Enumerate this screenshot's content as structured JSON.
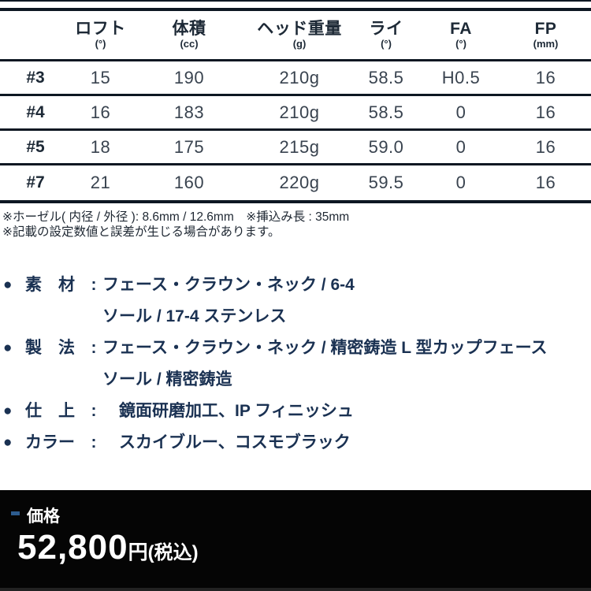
{
  "accent_colors": {
    "table_line": "#0d1722",
    "spec_text_navy": "#1a3152",
    "price_background": "#050505",
    "price_dash_blue": "#2d5c8f"
  },
  "table": {
    "headers": [
      {
        "label": "ロフト",
        "unit": "(°)"
      },
      {
        "label": "体積",
        "unit": "(cc)"
      },
      {
        "label": "ヘッド重量",
        "unit": "(g)"
      },
      {
        "label": "ライ",
        "unit": "(°)"
      },
      {
        "label": "FA",
        "unit": "(°)"
      },
      {
        "label": "FP",
        "unit": "(mm)"
      }
    ],
    "rows": [
      {
        "club": "#3",
        "values": [
          "15",
          "190",
          "210g",
          "58.5",
          "H0.5",
          "16"
        ]
      },
      {
        "club": "#4",
        "values": [
          "16",
          "183",
          "210g",
          "58.5",
          "0",
          "16"
        ]
      },
      {
        "club": "#5",
        "values": [
          "18",
          "175",
          "215g",
          "59.0",
          "0",
          "16"
        ]
      },
      {
        "club": "#7",
        "values": [
          "21",
          "160",
          "220g",
          "59.5",
          "0",
          "16"
        ]
      }
    ]
  },
  "notes": {
    "line1": "※ホーゼル( 内径 / 外径 ): 8.6mm / 12.6mm　※挿込み長 : 35mm",
    "line2": "※記載の設定数値と誤差が生じる場合があります。"
  },
  "specs": {
    "bullet": "●",
    "colon": ":",
    "items": [
      {
        "label": "素　材",
        "line1": "フェース・クラウン・ネック / 6-4",
        "line2": "ソール / 17-4 ステンレス"
      },
      {
        "label": "製　法",
        "line1": "フェース・クラウン・ネック / 精密鋳造 L 型カップフェース",
        "line2": "ソール / 精密鋳造"
      },
      {
        "label": "仕　上",
        "line1": "　鏡面研磨加工、IP フィニッシュ"
      },
      {
        "label": "カラー",
        "line1": "　スカイブルー、コスモブラック"
      }
    ]
  },
  "price": {
    "label": "価格",
    "amount": "52,800",
    "unit": "円",
    "tax_note": "(税込)"
  }
}
